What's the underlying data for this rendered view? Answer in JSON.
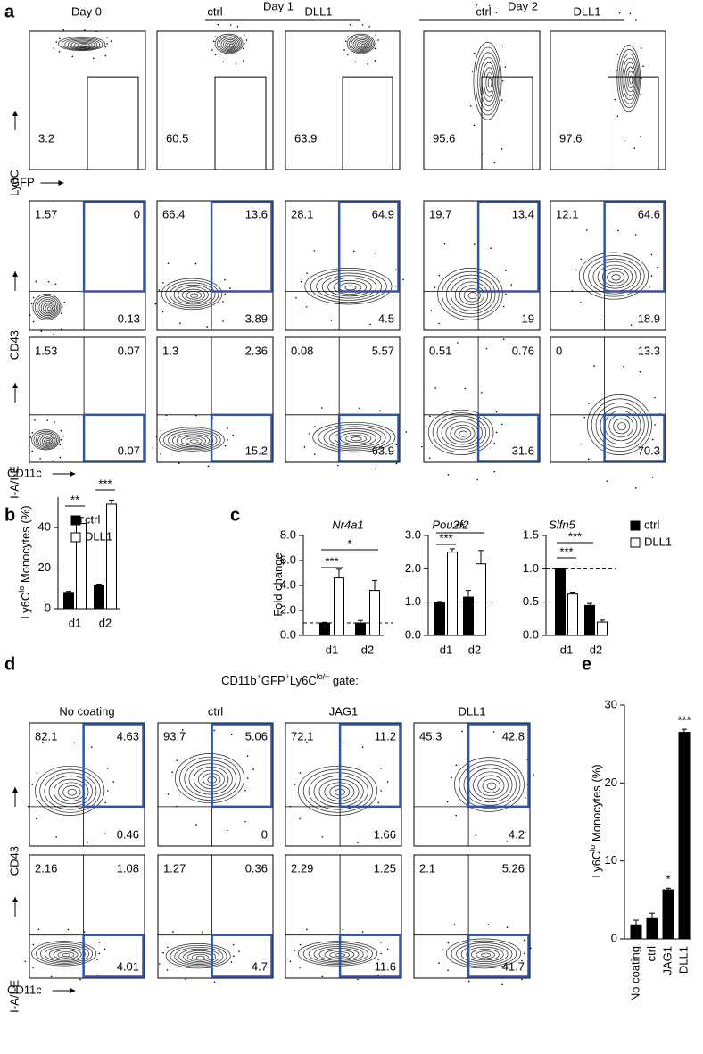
{
  "panel_labels": [
    "a",
    "b",
    "c",
    "d",
    "e"
  ],
  "panel_a": {
    "headers": {
      "day0": "Day 0",
      "day1": "Day 1",
      "day2": "Day 2",
      "sub": [
        "ctrl",
        "DLL1",
        "ctrl",
        "DLL1"
      ]
    },
    "axes": {
      "row1_y": "Ly6C",
      "row1_x": "GFP",
      "row2_y": "CD43",
      "row3_y": "I-A/I-E",
      "x": "CD11c"
    },
    "gfp_gates": [
      "3.2",
      "60.5",
      "63.9",
      "95.6",
      "97.6"
    ],
    "cd43_quadrants": [
      [
        "1.57",
        "0",
        "0.13"
      ],
      [
        "66.4",
        "13.6",
        "3.89"
      ],
      [
        "28.1",
        "64.9",
        "4.5"
      ],
      [
        "19.7",
        "13.4",
        "19"
      ],
      [
        "12.1",
        "64.6",
        "18.9"
      ]
    ],
    "iaie_quadrants": [
      [
        "1.53",
        "0.07",
        "0.07"
      ],
      [
        "1.3",
        "2.36",
        "15.2"
      ],
      [
        "0.08",
        "5.57",
        "63.9"
      ],
      [
        "0.51",
        "0.76",
        "31.6"
      ],
      [
        "0",
        "13.3",
        "70.3"
      ]
    ]
  },
  "panel_d": {
    "title": [
      "CD11b",
      "+",
      "GFP",
      "+",
      "Ly6C",
      "lo/–",
      " gate:"
    ],
    "headers": [
      "No coating",
      "ctrl",
      "JAG1",
      "DLL1"
    ],
    "axes": {
      "row1_y": "CD43",
      "row2_y": "I-A/I-E",
      "x": "CD11c"
    },
    "cd43_quadrants": [
      [
        "82.1",
        "4.63",
        "0.46"
      ],
      [
        "93.7",
        "5.06",
        "0"
      ],
      [
        "72.1",
        "11.2",
        "1.66"
      ],
      [
        "45.3",
        "42.8",
        "4.2"
      ]
    ],
    "iaie_quadrants": [
      [
        "2.16",
        "1.08",
        "4.01"
      ],
      [
        "1.27",
        "0.36",
        "4.7"
      ],
      [
        "2.29",
        "1.25",
        "11.6"
      ],
      [
        "2.1",
        "5.26",
        "41.7"
      ]
    ]
  },
  "chart_data": [
    {
      "type": "bar",
      "y_label": [
        "Ly6C",
        "lo",
        " Monocytes (%)"
      ],
      "categories": [
        "d1",
        "d2"
      ],
      "series": [
        {
          "name": "ctrl",
          "color": "#000000",
          "values": [
            8,
            11.5
          ],
          "errors": [
            0.5,
            0.6
          ]
        },
        {
          "name": "DLL1",
          "color": "#ffffff",
          "values": [
            42,
            51.5
          ],
          "errors": [
            3,
            2
          ]
        }
      ],
      "ylim": [
        0,
        55
      ],
      "yticks": [
        0,
        20,
        40
      ],
      "significance": [
        "**",
        "***"
      ],
      "legend": "top-left"
    },
    {
      "type": "bar",
      "title": "Nr4a1",
      "y_label": [
        "Fold change"
      ],
      "categories": [
        "d1",
        "d2"
      ],
      "series": [
        {
          "name": "ctrl",
          "color": "#000000",
          "values": [
            1.0,
            1.0
          ],
          "errors": [
            0.05,
            0.2
          ]
        },
        {
          "name": "DLL1",
          "color": "#ffffff",
          "values": [
            4.6,
            3.6
          ],
          "errors": [
            0.7,
            0.8
          ]
        }
      ],
      "ylim": [
        0,
        8
      ],
      "yticks": [
        {
          "value": 0,
          "label": "0.0"
        },
        {
          "value": 2,
          "label": "2.0"
        },
        {
          "value": 4,
          "label": "4.0"
        },
        {
          "value": 6,
          "label": "6.0"
        },
        {
          "value": 8,
          "label": "8.0"
        }
      ],
      "reference_line": 1,
      "significance": [
        "***",
        "*"
      ]
    },
    {
      "type": "bar",
      "title": "Pou2f2",
      "categories": [
        "d1",
        "d2"
      ],
      "series": [
        {
          "name": "ctrl",
          "color": "#000000",
          "values": [
            1.0,
            1.15
          ],
          "errors": [
            0.02,
            0.2
          ]
        },
        {
          "name": "DLL1",
          "color": "#ffffff",
          "values": [
            2.5,
            2.15
          ],
          "errors": [
            0.1,
            0.4
          ]
        }
      ],
      "ylim": [
        0,
        3
      ],
      "yticks": [
        {
          "value": 0,
          "label": "0.0"
        },
        {
          "value": 1,
          "label": "1.0"
        },
        {
          "value": 2,
          "label": "2.0"
        },
        {
          "value": 3,
          "label": "3.0"
        }
      ],
      "reference_line": 1,
      "significance": [
        "***",
        "**"
      ]
    },
    {
      "type": "bar",
      "title": "Slfn5",
      "categories": [
        "d1",
        "d2"
      ],
      "series": [
        {
          "name": "ctrl",
          "color": "#000000",
          "values": [
            1.0,
            0.45
          ],
          "errors": [
            0.01,
            0.03
          ]
        },
        {
          "name": "DLL1",
          "color": "#ffffff",
          "values": [
            0.62,
            0.2
          ],
          "errors": [
            0.03,
            0.03
          ]
        }
      ],
      "ylim": [
        0,
        1.5
      ],
      "yticks": [
        {
          "value": 0,
          "label": "0.0"
        },
        {
          "value": 0.5,
          "label": "0.5"
        },
        {
          "value": 1,
          "label": "1.0"
        },
        {
          "value": 1.5,
          "label": "1.5"
        }
      ],
      "reference_line": 1,
      "significance": [
        "***",
        "***"
      ],
      "legend": "right"
    },
    {
      "type": "bar",
      "y_label": [
        "Ly6C",
        "lo",
        " Monocytes (%)"
      ],
      "categories": [
        "No coating",
        "ctrl",
        "JAG1",
        "DLL1"
      ],
      "series": [
        {
          "color": "#000000",
          "values": [
            1.8,
            2.6,
            6.3,
            26.5
          ],
          "errors": [
            0.6,
            0.7,
            0.2,
            0.4
          ]
        }
      ],
      "ylim": [
        0,
        30
      ],
      "yticks": [
        0,
        10,
        20,
        30
      ],
      "significance": [
        null,
        null,
        "*",
        "***"
      ]
    }
  ]
}
